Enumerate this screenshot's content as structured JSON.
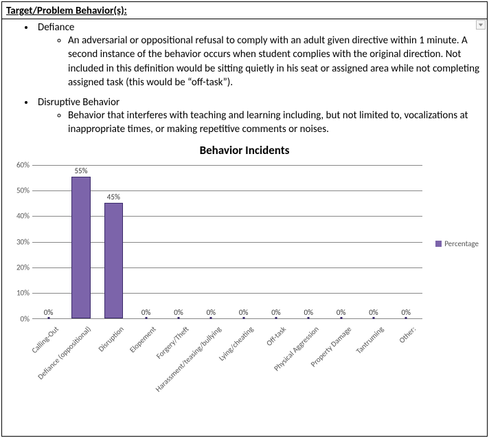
{
  "header": "Target/Problem Behavior(s):",
  "behaviors": [
    {
      "name": "Defiance",
      "definition": "An adversarial or oppositional refusal to comply with an adult given directive within 1 minute. A second instance of the behavior occurs when student complies with the original direction. Not included in this definition would be sitting quietly in his seat or assigned area while not completing assigned task (this would be “off-task”)."
    },
    {
      "name": "Disruptive Behavior",
      "definition": "Behavior that interferes with teaching and learning including, but not limited to, vocalizations at inappropriate times, or making repetitive comments or noises."
    }
  ],
  "chart": {
    "type": "bar",
    "title": "Behavior Incidents",
    "title_fontsize": 17,
    "legend_label": "Percentage",
    "bar_color": "#7c64aa",
    "bar_border_color": "#3b2a6b",
    "grid_color": "#888888",
    "background_color": "#ffffff",
    "text_color": "#555555",
    "label_fontsize": 11,
    "ylim": [
      0,
      60
    ],
    "ytick_step": 10,
    "yticks": [
      "0%",
      "10%",
      "20%",
      "30%",
      "40%",
      "50%",
      "60%"
    ],
    "bar_width": 0.58,
    "categories": [
      "Calling-Out",
      "Defiance (oppositional)",
      "Disruption",
      "Elopement",
      "Forgery/Theft",
      "Harassment/teasing/bullying",
      "Lying/cheating",
      "Off-task",
      "Physical Aggression",
      "Property Damage",
      "Tantruming",
      "Other:"
    ],
    "values": [
      0,
      55,
      45,
      0,
      0,
      0,
      0,
      0,
      0,
      0,
      0,
      0
    ],
    "value_labels": [
      "0%",
      "55%",
      "45%",
      "0%",
      "0%",
      "0%",
      "0%",
      "0%",
      "0%",
      "0%",
      "0%",
      "0%"
    ]
  }
}
